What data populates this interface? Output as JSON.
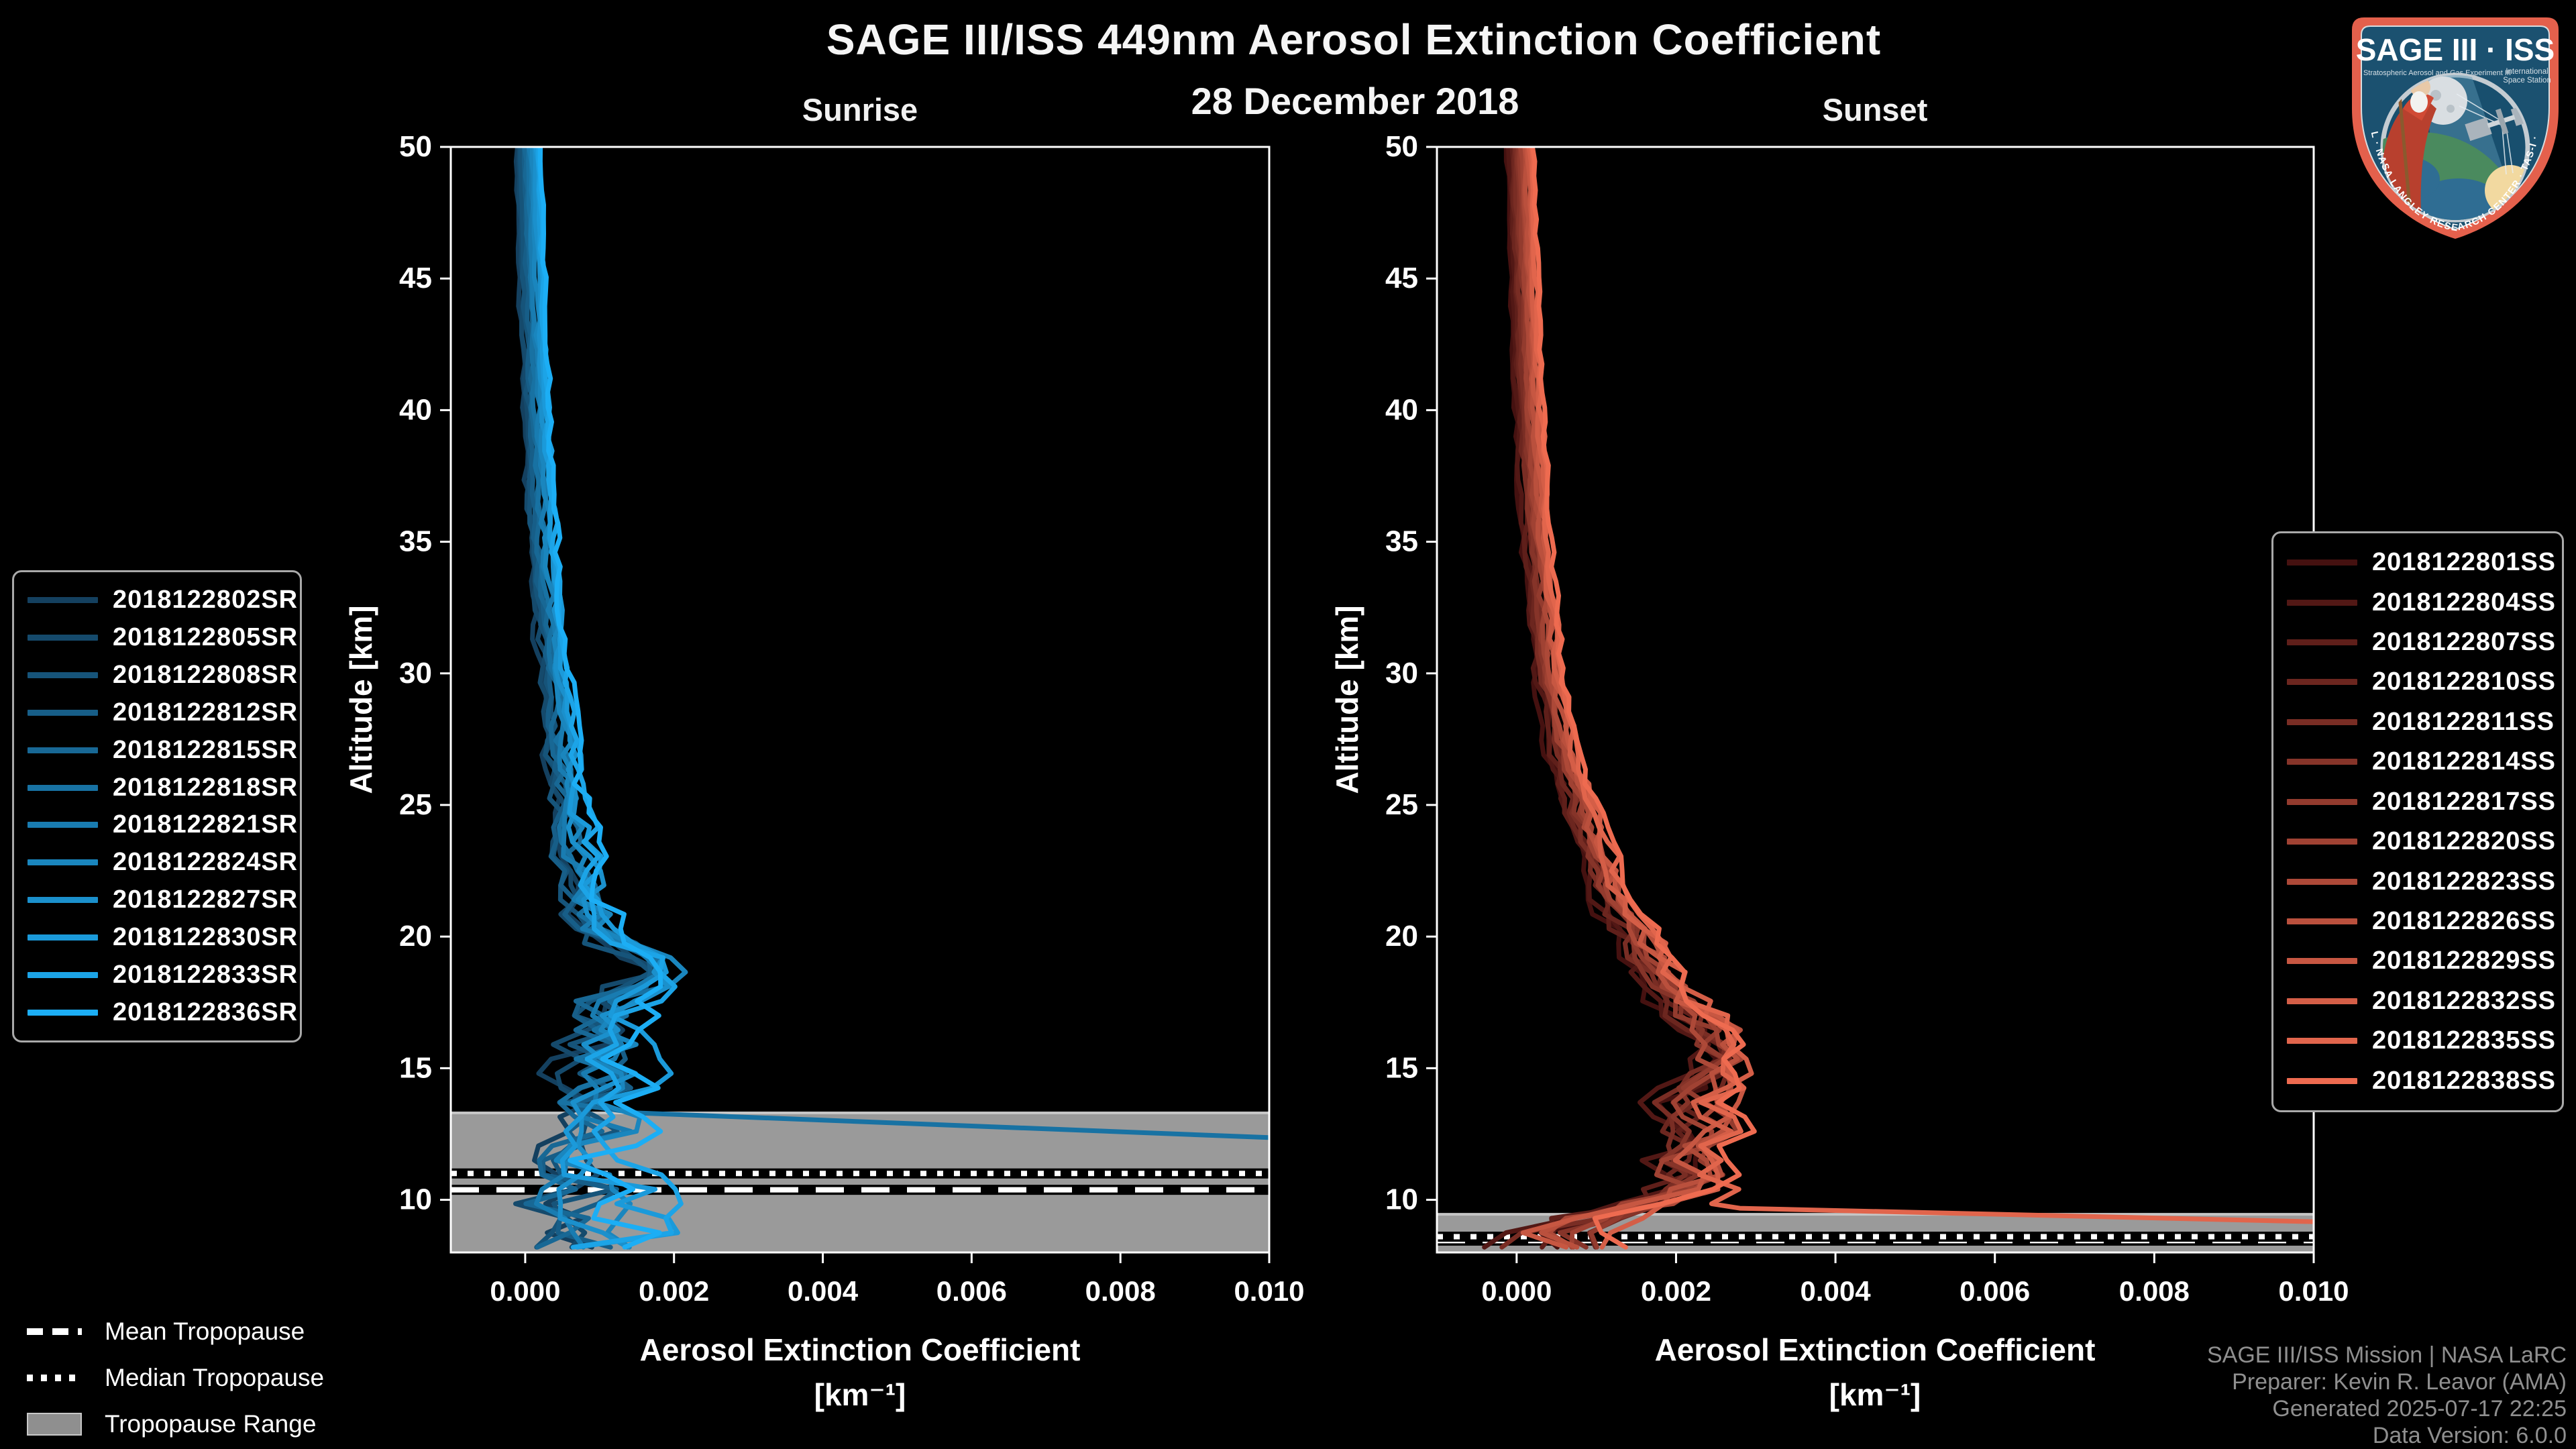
{
  "header": {
    "title": "SAGE III/ISS 449nm Aerosol Extinction Coefficient",
    "date": "28 December 2018"
  },
  "footer": {
    "line1": "SAGE III/ISS Mission | NASA LaRC",
    "line2": "Preparer: Kevin R. Leavor (AMA)",
    "line3": "Generated 2025-07-17 22:25",
    "line4": "Data Version: 6.0.0"
  },
  "tropopause_legend": {
    "mean": "Mean Tropopause",
    "median": "Median Tropopause",
    "range": "Tropopause Range"
  },
  "logo": {
    "title": "SAGE III · ISS",
    "sub_left": "Stratospheric Aerosol and Gas Experiment III",
    "sub_right_1": "International",
    "sub_right_2": "Space Station",
    "arc": "BALL · NASA LANGLEY RESEARCH CENTER · TAS-I · ESA"
  },
  "chart_data": [
    {
      "type": "line",
      "title": "Sunrise",
      "event_type": "SR",
      "xlabel_line1": "Aerosol Extinction Coefficient",
      "xlabel_line2": "[km⁻¹]",
      "ylabel": "Altitude [km]",
      "xlim": [
        -0.001,
        0.01
      ],
      "ylim": [
        8,
        50
      ],
      "xticks": [
        0,
        0.002,
        0.004,
        0.006,
        0.008,
        0.01
      ],
      "xtick_labels": [
        "0.000",
        "0.002",
        "0.004",
        "0.006",
        "0.008",
        "0.010"
      ],
      "yticks": [
        10,
        15,
        20,
        25,
        30,
        35,
        40,
        45,
        50
      ],
      "grid": false,
      "legend_position": "outside-left",
      "band_color": "#9a9a9a",
      "band_edge_color": "#c6c6c6",
      "tropopause": {
        "range_km": [
          8.0,
          13.3
        ],
        "median_km": 11.0,
        "mean_km": 10.38
      },
      "base_profile_alt_km_vs_extinction": [
        [
          50,
          5e-05
        ],
        [
          45,
          0.0001
        ],
        [
          40,
          0.00015
        ],
        [
          35,
          0.00025
        ],
        [
          30,
          0.0004
        ],
        [
          27,
          0.0005
        ],
        [
          25,
          0.0006
        ],
        [
          23,
          0.0007
        ],
        [
          21.5,
          0.0008
        ],
        [
          20.5,
          0.0009
        ],
        [
          19.5,
          0.0013
        ],
        [
          18.8,
          0.0019
        ],
        [
          18.2,
          0.0016
        ],
        [
          17.5,
          0.0011
        ],
        [
          16.5,
          0.0012
        ],
        [
          15.5,
          0.001
        ],
        [
          14.5,
          0.0011
        ],
        [
          13.5,
          0.0009
        ],
        [
          12.5,
          0.001
        ],
        [
          11.5,
          0.0007
        ],
        [
          10.5,
          0.001
        ],
        [
          9.5,
          0.0008
        ],
        [
          8.8,
          0.0012
        ],
        [
          8,
          0.0007
        ]
      ],
      "noise_amplitude_profile": [
        [
          50,
          2e-05
        ],
        [
          30,
          8e-05
        ],
        [
          25,
          0.00015
        ],
        [
          20,
          0.00035
        ],
        [
          17,
          0.0005
        ],
        [
          14,
          0.0006
        ],
        [
          11,
          0.0008
        ],
        [
          8,
          0.0009
        ]
      ],
      "cloud_event": {
        "series": "2018122818SR",
        "from_ext_alt": [
          0.0015,
          13.3
        ],
        "to_ext_alt": [
          0.0104,
          12.32
        ]
      },
      "render_hints": {
        "sample_step_km": 0.55,
        "series_spread": 7e-05,
        "noise_smooth": 0.3,
        "noise_gain": 0.85,
        "line_width": 7
      },
      "series": [
        {
          "name": "2018122802SR",
          "color": "#14405f",
          "seed": 3
        },
        {
          "name": "2018122805SR",
          "color": "#154a6c",
          "seed": 17
        },
        {
          "name": "2018122808SR",
          "color": "#16547a",
          "seed": 29
        },
        {
          "name": "2018122812SR",
          "color": "#175e88",
          "seed": 41
        },
        {
          "name": "2018122815SR",
          "color": "#186895",
          "seed": 53
        },
        {
          "name": "2018122818SR",
          "color": "#1872a3",
          "seed": 67
        },
        {
          "name": "2018122821SR",
          "color": "#197cb1",
          "seed": 79
        },
        {
          "name": "2018122824SR",
          "color": "#1a86be",
          "seed": 97
        },
        {
          "name": "2018122827SR",
          "color": "#1b90cc",
          "seed": 113
        },
        {
          "name": "2018122830SR",
          "color": "#1b9ada",
          "seed": 127
        },
        {
          "name": "2018122833SR",
          "color": "#1ca4e7",
          "seed": 139
        },
        {
          "name": "2018122836SR",
          "color": "#1caef5",
          "seed": 151
        }
      ]
    },
    {
      "type": "line",
      "title": "Sunset",
      "event_type": "SS",
      "xlabel_line1": "Aerosol Extinction Coefficient",
      "xlabel_line2": "[km⁻¹]",
      "ylabel": "Altitude [km]",
      "xlim": [
        -0.001,
        0.01
      ],
      "ylim": [
        8,
        50
      ],
      "xticks": [
        0,
        0.002,
        0.004,
        0.006,
        0.008,
        0.01
      ],
      "xtick_labels": [
        "0.000",
        "0.002",
        "0.004",
        "0.006",
        "0.008",
        "0.010"
      ],
      "yticks": [
        10,
        15,
        20,
        25,
        30,
        35,
        40,
        45,
        50
      ],
      "grid": false,
      "legend_position": "outside-right",
      "band_color": "#9a9a9a",
      "band_edge_color": "#c6c6c6",
      "tropopause": {
        "range_km": [
          8.0,
          9.45
        ],
        "median_km": 8.6,
        "mean_km": 8.45
      },
      "base_profile_alt_km_vs_extinction": [
        [
          50,
          5e-05
        ],
        [
          45,
          0.0001
        ],
        [
          40,
          0.00015
        ],
        [
          35,
          0.00025
        ],
        [
          30,
          0.0004
        ],
        [
          27,
          0.0006
        ],
        [
          25,
          0.0008
        ],
        [
          23,
          0.001
        ],
        [
          21,
          0.0013
        ],
        [
          19,
          0.0017
        ],
        [
          17.5,
          0.0021
        ],
        [
          16.5,
          0.0024
        ],
        [
          15.5,
          0.0026
        ],
        [
          14.5,
          0.0024
        ],
        [
          13.5,
          0.0022
        ],
        [
          12.5,
          0.0024
        ],
        [
          11.5,
          0.0021
        ],
        [
          10.5,
          0.0022
        ],
        [
          10,
          0.0018
        ],
        [
          9.5,
          0.0012
        ],
        [
          9,
          0.0006
        ],
        [
          8.5,
          0.0003
        ],
        [
          8,
          0.0006
        ]
      ],
      "noise_amplitude_profile": [
        [
          50,
          2e-05
        ],
        [
          30,
          6e-05
        ],
        [
          25,
          0.0001
        ],
        [
          20,
          0.0002
        ],
        [
          17,
          0.0003
        ],
        [
          14,
          0.0004
        ],
        [
          11,
          0.0005
        ],
        [
          9.5,
          0.0006
        ],
        [
          8,
          0.0007
        ]
      ],
      "cloud_event": {
        "series": "2018122835SS",
        "from_ext_alt": [
          0.0028,
          9.68
        ],
        "to_ext_alt": [
          0.0104,
          9.14
        ]
      },
      "render_hints": {
        "sample_step_km": 0.55,
        "series_spread": 6e-05,
        "noise_smooth": 0.3,
        "noise_gain": 0.85,
        "line_width": 7
      },
      "series": [
        {
          "name": "2018122801SS",
          "color": "#451110",
          "seed": 7
        },
        {
          "name": "2018122804SS",
          "color": "#521815",
          "seed": 19
        },
        {
          "name": "2018122807SS",
          "color": "#5f1f1a",
          "seed": 31
        },
        {
          "name": "2018122810SS",
          "color": "#6c261f",
          "seed": 43
        },
        {
          "name": "2018122811SS",
          "color": "#792d24",
          "seed": 59
        },
        {
          "name": "2018122814SS",
          "color": "#863429",
          "seed": 71
        },
        {
          "name": "2018122817SS",
          "color": "#933b2e",
          "seed": 83
        },
        {
          "name": "2018122820SS",
          "color": "#a04233",
          "seed": 101
        },
        {
          "name": "2018122823SS",
          "color": "#ad4938",
          "seed": 109
        },
        {
          "name": "2018122826SS",
          "color": "#ba503d",
          "seed": 131
        },
        {
          "name": "2018122829SS",
          "color": "#c75742",
          "seed": 149
        },
        {
          "name": "2018122832SS",
          "color": "#d45e47",
          "seed": 157
        },
        {
          "name": "2018122835SS",
          "color": "#e1654c",
          "seed": 163
        },
        {
          "name": "2018122838SS",
          "color": "#ee6b50",
          "seed": 173
        }
      ]
    }
  ]
}
